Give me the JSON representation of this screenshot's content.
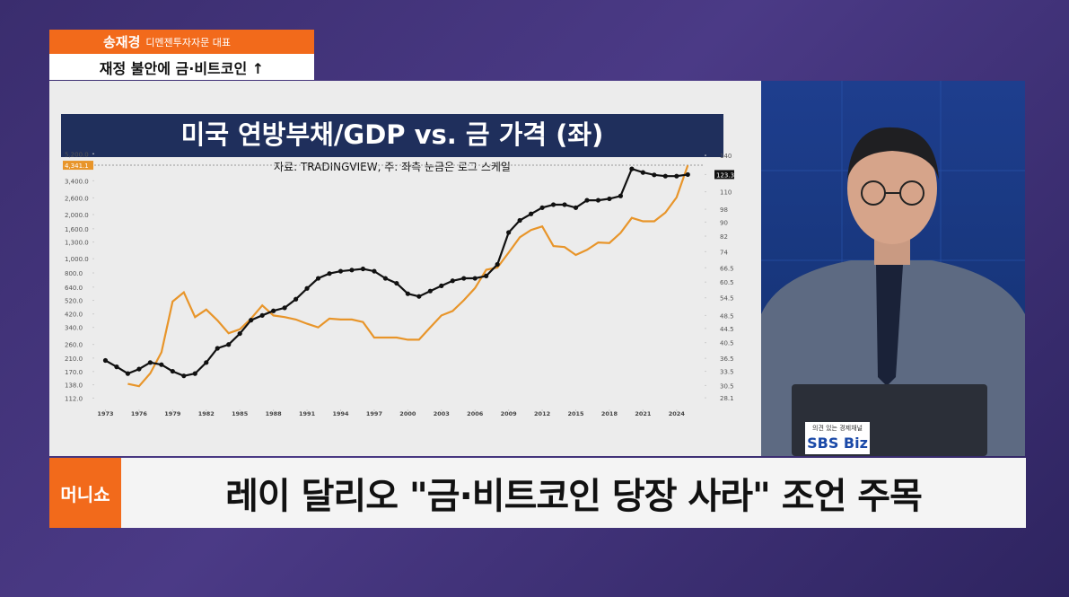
{
  "header": {
    "name": "송재경",
    "affiliation": "디멘젠투자자문 대표",
    "topic": "재정 불안에 금·비트코인 ↑"
  },
  "chart_data": {
    "type": "line",
    "title": "미국 연방부채/GDP vs. 금 가격 (좌)",
    "subtitle": "자료: TRADINGVIEW, 주: 좌측 눈금은 로그 스케일",
    "x": [
      1973,
      1974,
      1975,
      1976,
      1977,
      1978,
      1979,
      1980,
      1981,
      1982,
      1983,
      1984,
      1985,
      1986,
      1987,
      1988,
      1989,
      1990,
      1991,
      1992,
      1993,
      1994,
      1995,
      1996,
      1997,
      1998,
      1999,
      2000,
      2001,
      2002,
      2003,
      2004,
      2005,
      2006,
      2007,
      2008,
      2009,
      2010,
      2011,
      2012,
      2013,
      2014,
      2015,
      2016,
      2017,
      2018,
      2019,
      2020,
      2021,
      2022,
      2023,
      2024,
      2025
    ],
    "series": [
      {
        "color": "#e8952a",
        "values": [
          null,
          null,
          140,
          135,
          165,
          230,
          510,
          590,
          400,
          450,
          380,
          310,
          330,
          390,
          480,
          410,
          400,
          385,
          360,
          340,
          390,
          385,
          385,
          370,
          290,
          290,
          290,
          280,
          280,
          340,
          410,
          440,
          520,
          630,
          840,
          870,
          1100,
          1400,
          1570,
          1660,
          1220,
          1200,
          1060,
          1150,
          1290,
          1280,
          1500,
          1900,
          1800,
          1800,
          2060,
          2620,
          4341.1
        ]
      },
      {
        "color": "#111111",
        "axis": "y2",
        "markers": true,
        "values": [
          36,
          34.5,
          33,
          34,
          35.5,
          35,
          33.5,
          32.5,
          33,
          35.5,
          39,
          40,
          43,
          47,
          48.5,
          50,
          51,
          54,
          58,
          62,
          64,
          65,
          65.5,
          66,
          65,
          62,
          60,
          56,
          55,
          57,
          59,
          61,
          62,
          62,
          63,
          68,
          84,
          91,
          95,
          99,
          101,
          101,
          99,
          104,
          104,
          105,
          107,
          128,
          125,
          123,
          122,
          122,
          123.3
        ]
      }
    ],
    "xlim": [
      1972,
      2026.5
    ],
    "xticks": [
      1973,
      1976,
      1979,
      1982,
      1985,
      1988,
      1991,
      1994,
      1997,
      2000,
      2003,
      2006,
      2009,
      2012,
      2015,
      2018,
      2021,
      2024
    ],
    "log_scale": true,
    "ylim": [
      105,
      5600
    ],
    "yticks": [
      {
        "value": 112,
        "label": "112.0"
      },
      {
        "value": 138,
        "label": "138.0"
      },
      {
        "value": 170,
        "label": "170.0"
      },
      {
        "value": 210,
        "label": "210.0"
      },
      {
        "value": 260,
        "label": "260.0"
      },
      {
        "value": 340,
        "label": "340.0"
      },
      {
        "value": 420,
        "label": "420.0"
      },
      {
        "value": 520,
        "label": "520.0"
      },
      {
        "value": 640,
        "label": "640.0"
      },
      {
        "value": 800,
        "label": "800.0"
      },
      {
        "value": 1000,
        "label": "1,000.0"
      },
      {
        "value": 1300,
        "label": "1,300.0"
      },
      {
        "value": 1600,
        "label": "1,600.0"
      },
      {
        "value": 2000,
        "label": "2,000.0"
      },
      {
        "value": 2600,
        "label": "2,600.0"
      },
      {
        "value": 3400,
        "label": "3,400.0"
      },
      {
        "value": 4341.1,
        "label": "4,341.1"
      },
      {
        "value": 5200,
        "label": "5,200.0"
      }
    ],
    "y2lim": [
      27.3,
      146
    ],
    "y2ticks": [
      28.1,
      30.5,
      33.5,
      36.5,
      40.5,
      44.5,
      48.5,
      54.5,
      60.5,
      66.5,
      74,
      82,
      90,
      98,
      110,
      123.3,
      140
    ]
  },
  "banner": {
    "logo": "머니쇼",
    "headline": "레이 달리오 \"금·비트코인 당장 사라\" 조언 주목"
  },
  "channel": {
    "tagline": "의견 있는 경제채널",
    "name": "SBS Biz"
  }
}
